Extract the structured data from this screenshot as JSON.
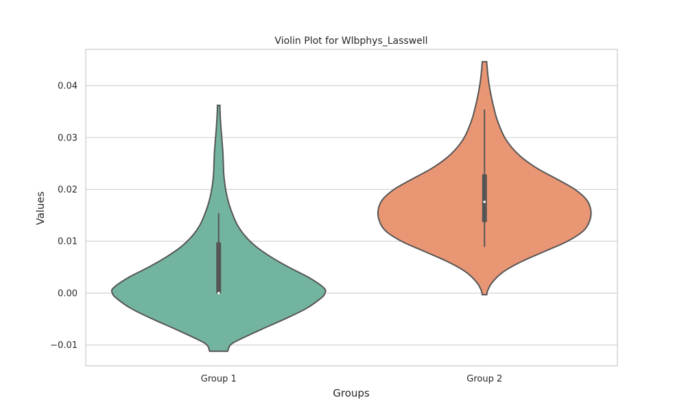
{
  "chart_data": {
    "type": "violin",
    "title": "Violin Plot for Wlbphys_Lasswell",
    "xlabel": "Groups",
    "ylabel": "Values",
    "ylim": [
      -0.014,
      0.047
    ],
    "yticks": [
      -0.01,
      0.0,
      0.01,
      0.02,
      0.03,
      0.04
    ],
    "ytick_labels": [
      "−0.01",
      "0.00",
      "0.01",
      "0.02",
      "0.03",
      "0.04"
    ],
    "grid": true,
    "categories": [
      "Group 1",
      "Group 2"
    ],
    "groups": [
      {
        "name": "Group 1",
        "color": "#73b4a0",
        "min": 0.0,
        "q1": 0.0,
        "median": 0.0,
        "q3": 0.0097,
        "max": 0.0154,
        "density": [
          [
            -0.0112,
            0.085
          ],
          [
            -0.01,
            0.11
          ],
          [
            -0.009,
            0.19
          ],
          [
            -0.007,
            0.4
          ],
          [
            -0.005,
            0.62
          ],
          [
            -0.003,
            0.82
          ],
          [
            -0.001,
            0.96
          ],
          [
            0.0,
            1.0
          ],
          [
            0.001,
            0.99
          ],
          [
            0.003,
            0.85
          ],
          [
            0.005,
            0.66
          ],
          [
            0.007,
            0.49
          ],
          [
            0.009,
            0.35
          ],
          [
            0.011,
            0.25
          ],
          [
            0.013,
            0.18
          ],
          [
            0.015,
            0.135
          ],
          [
            0.017,
            0.1
          ],
          [
            0.019,
            0.075
          ],
          [
            0.021,
            0.058
          ],
          [
            0.023,
            0.048
          ],
          [
            0.025,
            0.044
          ],
          [
            0.027,
            0.04
          ],
          [
            0.029,
            0.033
          ],
          [
            0.031,
            0.025
          ],
          [
            0.033,
            0.018
          ],
          [
            0.035,
            0.013
          ],
          [
            0.0362,
            0.012
          ]
        ]
      },
      {
        "name": "Group 2",
        "color": "#e99674",
        "min": 0.0089,
        "q1": 0.0138,
        "median": 0.0176,
        "q3": 0.0228,
        "max": 0.0354,
        "density": [
          [
            -0.0003,
            0.021
          ],
          [
            0.0005,
            0.03
          ],
          [
            0.002,
            0.07
          ],
          [
            0.004,
            0.17
          ],
          [
            0.006,
            0.34
          ],
          [
            0.008,
            0.56
          ],
          [
            0.01,
            0.78
          ],
          [
            0.012,
            0.93
          ],
          [
            0.014,
            0.99
          ],
          [
            0.016,
            1.0
          ],
          [
            0.018,
            0.96
          ],
          [
            0.02,
            0.85
          ],
          [
            0.022,
            0.68
          ],
          [
            0.024,
            0.5
          ],
          [
            0.026,
            0.36
          ],
          [
            0.028,
            0.26
          ],
          [
            0.03,
            0.19
          ],
          [
            0.032,
            0.145
          ],
          [
            0.034,
            0.11
          ],
          [
            0.036,
            0.085
          ],
          [
            0.038,
            0.063
          ],
          [
            0.04,
            0.045
          ],
          [
            0.042,
            0.032
          ],
          [
            0.044,
            0.023
          ],
          [
            0.0446,
            0.021
          ]
        ]
      }
    ]
  }
}
